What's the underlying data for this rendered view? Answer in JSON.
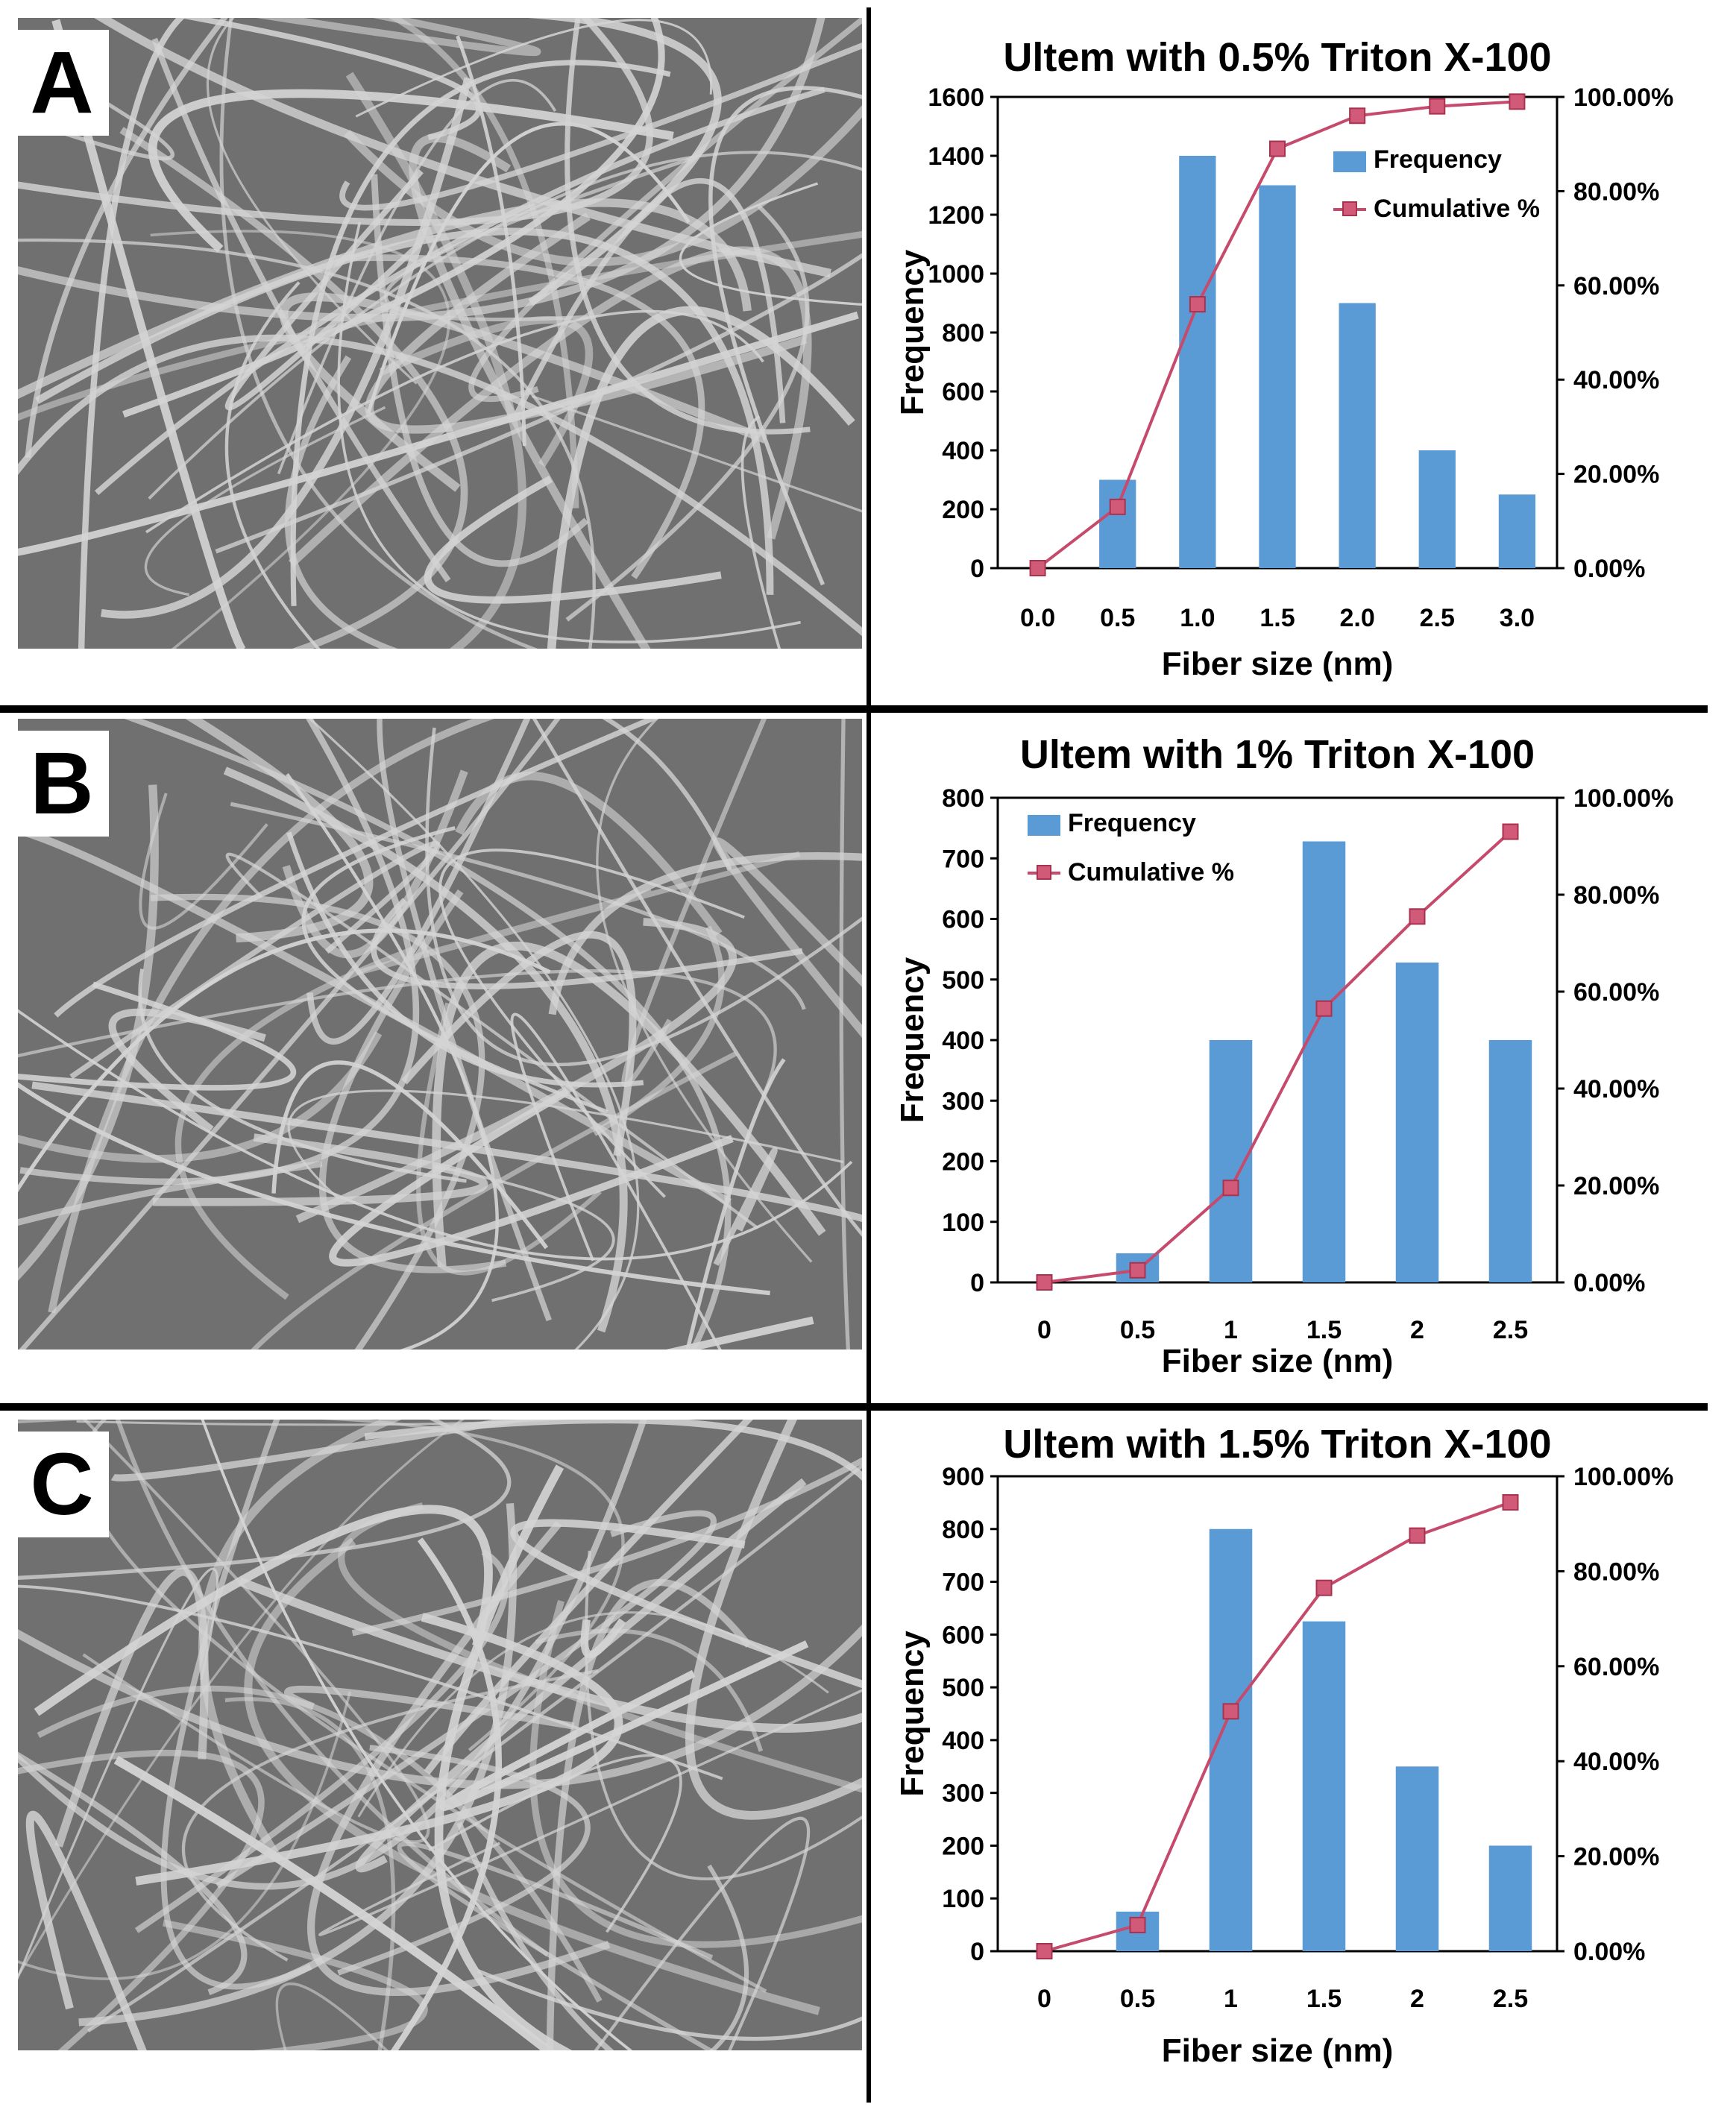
{
  "panels": [
    {
      "letter": "A"
    },
    {
      "letter": "B"
    },
    {
      "letter": "C"
    }
  ],
  "colors": {
    "bar": "#5b9bd5",
    "line": "#c64a6c",
    "marker": "#d05a78",
    "sem_background": "#707070",
    "fiber": "#d4d4d4"
  },
  "legend": {
    "frequency": "Frequency",
    "cumulative": "Cumulative %"
  },
  "chart_data": [
    {
      "type": "bar",
      "title": "Ultem with 0.5% Triton X-100",
      "xlabel": "Fiber size (nm)",
      "ylabel": "Frequency",
      "categories": [
        "0.0",
        "0.5",
        "1.0",
        "1.5",
        "2.0",
        "2.5",
        "3.0"
      ],
      "ylim": [
        0,
        1600
      ],
      "y_ticks": [
        "0",
        "200",
        "400",
        "600",
        "800",
        "1000",
        "1200",
        "1400",
        "1600"
      ],
      "y2lim": [
        0,
        100
      ],
      "y2_ticks": [
        "0.00%",
        "20.00%",
        "40.00%",
        "60.00%",
        "80.00%",
        "100.00%"
      ],
      "legend_position": "top-right",
      "series": [
        {
          "name": "Frequency",
          "type": "bar",
          "values": [
            0,
            300,
            1400,
            1300,
            900,
            400,
            250
          ]
        },
        {
          "name": "Cumulative %",
          "type": "line",
          "axis": "right",
          "values": [
            0,
            13,
            56,
            89,
            96,
            98,
            99
          ]
        }
      ]
    },
    {
      "type": "bar",
      "title": "Ultem with 1% Triton X-100",
      "xlabel": "Fiber size (nm)",
      "ylabel": "Frequency",
      "categories": [
        "0",
        "0.5",
        "1",
        "1.5",
        "2",
        "2.5"
      ],
      "ylim": [
        0,
        800
      ],
      "y_ticks": [
        "0",
        "100",
        "200",
        "300",
        "400",
        "500",
        "600",
        "700",
        "800"
      ],
      "y2lim": [
        0,
        100
      ],
      "y2_ticks": [
        "0.00%",
        "20.00%",
        "40.00%",
        "60.00%",
        "80.00%",
        "100.00%"
      ],
      "legend_position": "top-left",
      "series": [
        {
          "name": "Frequency",
          "type": "bar",
          "values": [
            0,
            48,
            400,
            728,
            528,
            400
          ]
        },
        {
          "name": "Cumulative %",
          "type": "line",
          "axis": "right",
          "values": [
            0,
            2.5,
            19.5,
            56.5,
            75.5,
            93
          ]
        }
      ]
    },
    {
      "type": "bar",
      "title": "Ultem with 1.5% Triton X-100",
      "xlabel": "Fiber size (nm)",
      "ylabel": "Frequency",
      "categories": [
        "0",
        "0.5",
        "1",
        "1.5",
        "2",
        "2.5"
      ],
      "ylim": [
        0,
        900
      ],
      "y_ticks": [
        "0",
        "100",
        "200",
        "300",
        "400",
        "500",
        "600",
        "700",
        "800",
        "900"
      ],
      "y2lim": [
        0,
        100
      ],
      "y2_ticks": [
        "0.00%",
        "20.00%",
        "40.00%",
        "60.00%",
        "80.00%",
        "100.00%"
      ],
      "legend_position": "none",
      "series": [
        {
          "name": "Frequency",
          "type": "bar",
          "values": [
            0,
            75,
            800,
            625,
            350,
            200
          ]
        },
        {
          "name": "Cumulative %",
          "type": "line",
          "axis": "right",
          "values": [
            0,
            5.5,
            50.5,
            76.5,
            87.5,
            94.5
          ]
        }
      ]
    }
  ]
}
